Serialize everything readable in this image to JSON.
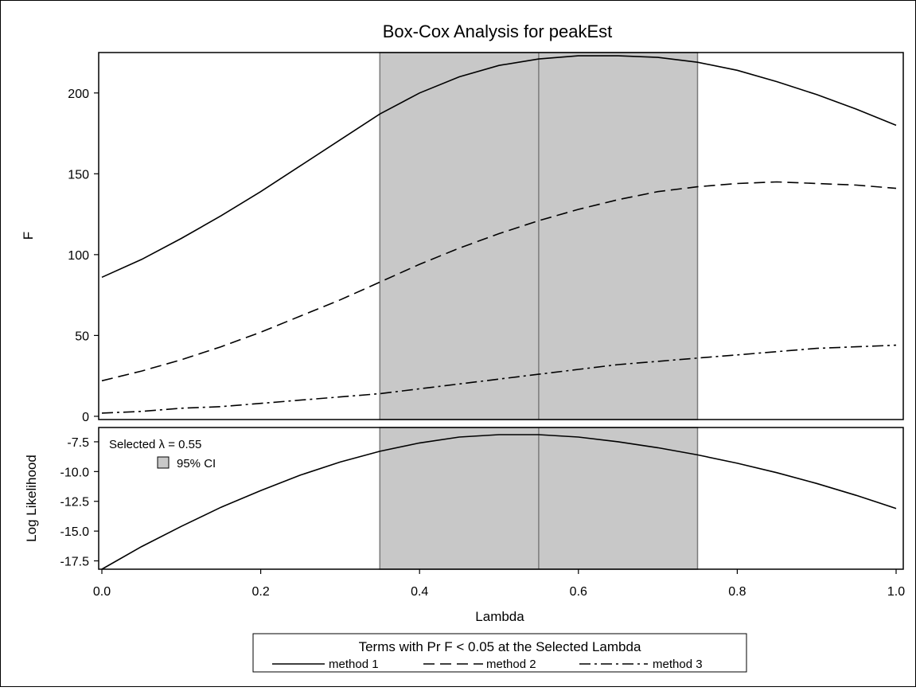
{
  "chart_data": {
    "type": "line",
    "title": "Box-Cox Analysis for peakEst",
    "xlabel": "Lambda",
    "xlim": [
      0,
      1
    ],
    "xticks": [
      "0.0",
      "0.2",
      "0.4",
      "0.6",
      "0.8",
      "1.0"
    ],
    "xtick_values": [
      0,
      0.2,
      0.4,
      0.6,
      0.8,
      1.0
    ],
    "selected_lambda": 0.55,
    "ci": [
      0.35,
      0.75
    ],
    "ci_color": "#c8c8c8",
    "x": [
      0,
      0.05,
      0.1,
      0.15,
      0.2,
      0.25,
      0.3,
      0.35,
      0.4,
      0.45,
      0.5,
      0.55,
      0.6,
      0.65,
      0.7,
      0.75,
      0.8,
      0.85,
      0.9,
      0.95,
      1.0
    ],
    "panels": [
      {
        "ylabel": "F",
        "ylim": [
          -2,
          225
        ],
        "yticks": [
          "0",
          "50",
          "100",
          "150",
          "200"
        ],
        "ytick_values": [
          0,
          50,
          100,
          150,
          200
        ],
        "series": [
          {
            "name": "method 1",
            "dash": "solid",
            "values": [
              86,
              97,
              110,
              124,
              139,
              155,
              171,
              187,
              200,
              210,
              217,
              221,
              223,
              223,
              222,
              219,
              214,
              207,
              199,
              190,
              180
            ]
          },
          {
            "name": "method 2",
            "dash": "dash",
            "values": [
              22,
              28,
              35,
              43,
              52,
              62,
              72,
              83,
              94,
              104,
              113,
              121,
              128,
              134,
              139,
              142,
              144,
              145,
              144,
              143,
              141
            ]
          },
          {
            "name": "method 3",
            "dash": "dashdot",
            "values": [
              2,
              3,
              5,
              6,
              8,
              10,
              12,
              14,
              17,
              20,
              23,
              26,
              29,
              32,
              34,
              36,
              38,
              40,
              42,
              43,
              44
            ]
          }
        ]
      },
      {
        "ylabel": "Log Likelihood",
        "ylim": [
          -18.2,
          -6.3
        ],
        "yticks": [
          "-7.5",
          "-10.0",
          "-12.5",
          "-15.0",
          "-17.5"
        ],
        "ytick_values": [
          -7.5,
          -10,
          -12.5,
          -15,
          -17.5
        ],
        "series": [
          {
            "name": "method 1",
            "dash": "solid",
            "values": [
              -18.2,
              -16.3,
              -14.6,
              -13.0,
              -11.6,
              -10.3,
              -9.2,
              -8.3,
              -7.6,
              -7.1,
              -6.9,
              -6.9,
              -7.1,
              -7.5,
              -8.0,
              -8.6,
              -9.3,
              -10.1,
              -11.0,
              -12.0,
              -13.1
            ]
          }
        ]
      }
    ],
    "inset_legend": {
      "selected_label": "Selected λ = 0.55",
      "ci_label": "95% CI"
    },
    "legend": {
      "title": "Terms with Pr F < 0.05 at the Selected Lambda",
      "placement": "bottom",
      "entries": [
        {
          "name": "method 1",
          "dash": "solid"
        },
        {
          "name": "method 2",
          "dash": "dash"
        },
        {
          "name": "method 3",
          "dash": "dashdot"
        }
      ]
    },
    "grid": false
  }
}
